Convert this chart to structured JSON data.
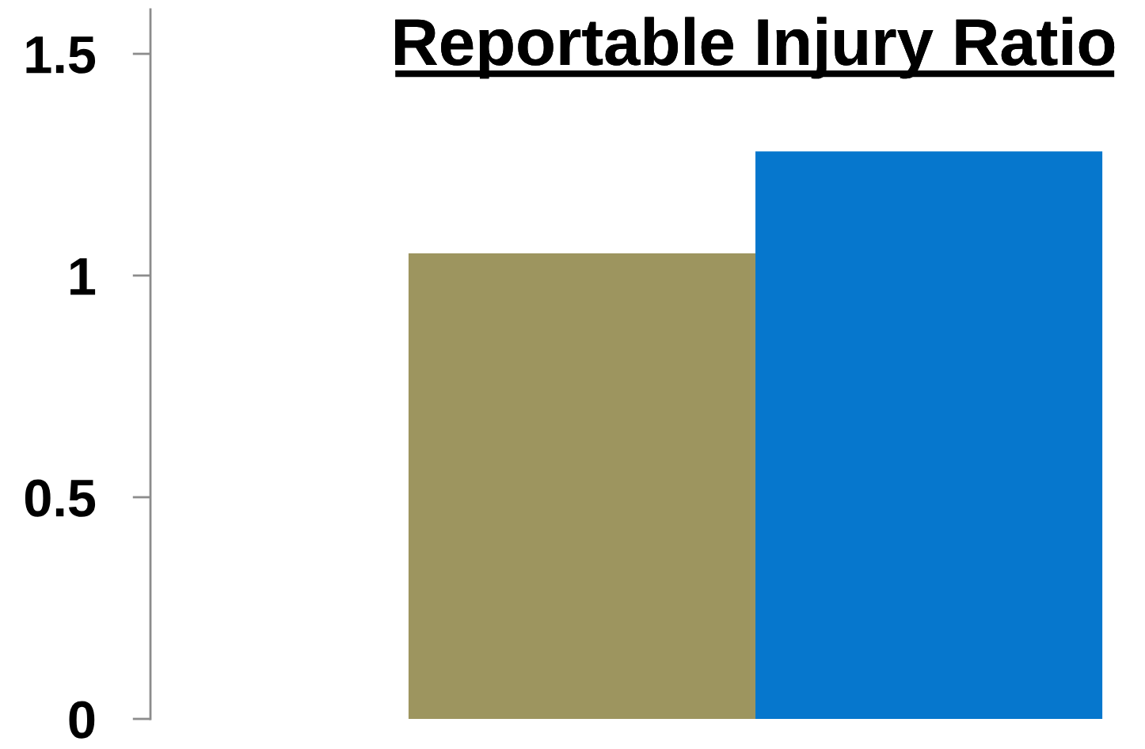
{
  "chart_data": {
    "type": "bar",
    "title": "Reportable Injury Ratio",
    "categories": [
      null,
      null
    ],
    "values": [
      1.05,
      1.28
    ],
    "colors": [
      "#9d955f",
      "#0677cd"
    ],
    "ylim": [
      0,
      1.6
    ],
    "yticks": [
      0,
      0.5,
      1,
      1.5
    ],
    "grid": false,
    "legend": false,
    "tick_labels": "y"
  }
}
